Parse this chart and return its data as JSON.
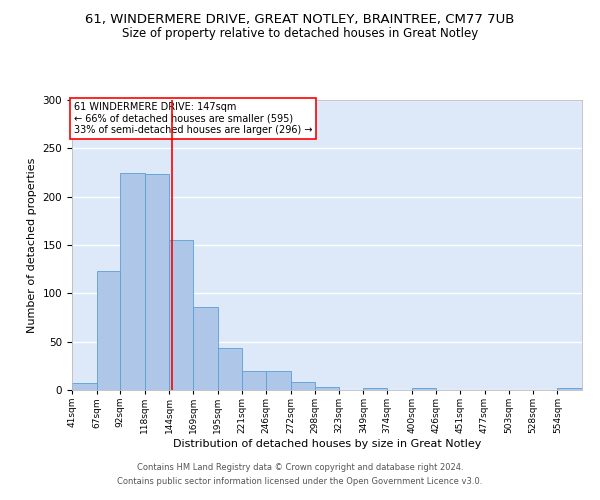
{
  "title1": "61, WINDERMERE DRIVE, GREAT NOTLEY, BRAINTREE, CM77 7UB",
  "title2": "Size of property relative to detached houses in Great Notley",
  "xlabel": "Distribution of detached houses by size in Great Notley",
  "ylabel": "Number of detached properties",
  "bar_labels": [
    "41sqm",
    "67sqm",
    "92sqm",
    "118sqm",
    "144sqm",
    "169sqm",
    "195sqm",
    "221sqm",
    "246sqm",
    "272sqm",
    "298sqm",
    "323sqm",
    "349sqm",
    "374sqm",
    "400sqm",
    "426sqm",
    "451sqm",
    "477sqm",
    "503sqm",
    "528sqm",
    "554sqm"
  ],
  "bar_values": [
    7,
    123,
    225,
    223,
    155,
    86,
    43,
    20,
    20,
    8,
    3,
    0,
    2,
    0,
    2,
    0,
    0,
    0,
    0,
    0,
    2
  ],
  "bar_color": "#aec6e8",
  "bar_edge_color": "#5a9fd4",
  "background_color": "#dde8f8",
  "grid_color": "#ffffff",
  "red_line_x": 147,
  "bin_edges": [
    41,
    67,
    92,
    118,
    144,
    169,
    195,
    221,
    246,
    272,
    298,
    323,
    349,
    374,
    400,
    426,
    451,
    477,
    503,
    528,
    554,
    580
  ],
  "annotation_line1": "61 WINDERMERE DRIVE: 147sqm",
  "annotation_line2": "← 66% of detached houses are smaller (595)",
  "annotation_line3": "33% of semi-detached houses are larger (296) →",
  "ylim": [
    0,
    300
  ],
  "yticks": [
    0,
    50,
    100,
    150,
    200,
    250,
    300
  ],
  "footer1": "Contains HM Land Registry data © Crown copyright and database right 2024.",
  "footer2": "Contains public sector information licensed under the Open Government Licence v3.0.",
  "title1_fontsize": 9.5,
  "title2_fontsize": 8.5,
  "xlabel_fontsize": 8,
  "ylabel_fontsize": 8
}
